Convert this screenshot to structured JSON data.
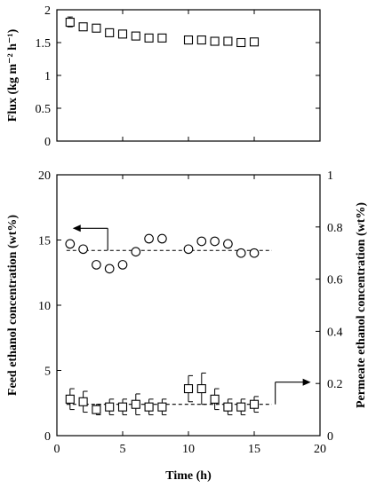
{
  "chart_data": [
    {
      "type": "scatter",
      "panel": "top",
      "ylabel": "Flux (kg m⁻² h⁻¹)",
      "xlim": [
        0,
        20
      ],
      "ylim": [
        0,
        2
      ],
      "yticks": [
        "0",
        "0.5",
        "1",
        "1.5",
        "2"
      ],
      "series": [
        {
          "marker": "square",
          "x": [
            1,
            2,
            3,
            4,
            5,
            6,
            7,
            8,
            10,
            11,
            12,
            13,
            14,
            15
          ],
          "y": [
            1.81,
            1.74,
            1.72,
            1.65,
            1.63,
            1.6,
            1.57,
            1.57,
            1.54,
            1.54,
            1.52,
            1.52,
            1.5,
            1.51
          ],
          "err_up": [
            0.08,
            0.05,
            0.04,
            0.04,
            0.04,
            0.03,
            0.03,
            0.04,
            0.04,
            0.04,
            0.03,
            0.03,
            0.03,
            0.03
          ],
          "err_down": [
            0.07,
            0.05,
            0.04,
            0.04,
            0.04,
            0.03,
            0.03,
            0.04,
            0.04,
            0.04,
            0.03,
            0.03,
            0.03,
            0.03
          ]
        }
      ]
    },
    {
      "type": "scatter",
      "panel": "bottom",
      "xlabel": "Time (h)",
      "ylabel": "Feed ethanol concentration (wt%)",
      "y2label": "Permeate ethanol concentration (wt%)",
      "xlim": [
        0,
        20
      ],
      "ylim": [
        0,
        20
      ],
      "y2lim": [
        0,
        1
      ],
      "xticks": [
        "0",
        "5",
        "10",
        "15",
        "20"
      ],
      "yticks": [
        "0",
        "5",
        "10",
        "15",
        "20"
      ],
      "y2ticks": [
        "0",
        "0.2",
        "0.4",
        "0.6",
        "0.8",
        "1"
      ],
      "series": [
        {
          "marker": "circle",
          "axis": "left",
          "x": [
            1,
            2,
            3,
            4,
            5,
            6,
            7,
            8,
            10,
            11,
            12,
            13,
            14,
            15
          ],
          "y": [
            14.7,
            14.3,
            13.1,
            12.8,
            13.1,
            14.1,
            15.1,
            15.1,
            14.3,
            14.9,
            14.9,
            14.7,
            14.0,
            14.0
          ],
          "mean_line": 14.2,
          "arrow_points": "left"
        },
        {
          "marker": "square",
          "axis": "right",
          "x": [
            1,
            2,
            3,
            4,
            5,
            6,
            7,
            8,
            10,
            11,
            12,
            13,
            14,
            15
          ],
          "y": [
            0.14,
            0.13,
            0.1,
            0.11,
            0.11,
            0.12,
            0.11,
            0.11,
            0.18,
            0.18,
            0.14,
            0.11,
            0.11,
            0.12
          ],
          "err": [
            0.04,
            0.04,
            0.02,
            0.03,
            0.03,
            0.04,
            0.03,
            0.03,
            0.05,
            0.06,
            0.04,
            0.03,
            0.03,
            0.03
          ],
          "mean_line": 0.12,
          "arrow_points": "right"
        }
      ]
    }
  ]
}
